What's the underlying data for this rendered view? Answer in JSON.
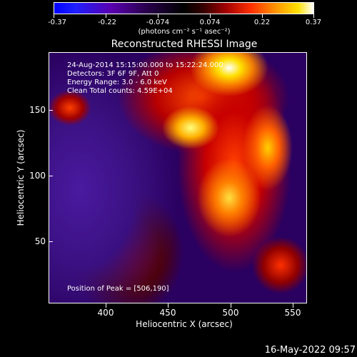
{
  "colorbar": {
    "ticks": [
      "-0.37",
      "-0.22",
      "-0.074",
      "0.074",
      "0.22",
      "0.37"
    ],
    "units": "(photons cm⁻² s⁻¹ asec⁻²)"
  },
  "title": "Reconstructed RHESSI Image",
  "info": {
    "time": "24-Aug-2014 15:15:00.000 to 15:22:24.000",
    "detectors": "Detectors: 3F 6F 9F, Att 0",
    "energy": "Energy Range: 3.0 - 6.0 keV",
    "clean": "Clean    Total counts: 4.59E+04"
  },
  "peak": "Position of Peak = [506,190]",
  "axes": {
    "x_ticks": [
      "400",
      "450",
      "500",
      "550"
    ],
    "y_ticks": [
      "150",
      "100",
      "50"
    ],
    "xlabel": "Heliocentric X (arcsec)",
    "ylabel": "Heliocentric Y (arcsec)"
  },
  "timestamp": "16-May-2022 09:57"
}
